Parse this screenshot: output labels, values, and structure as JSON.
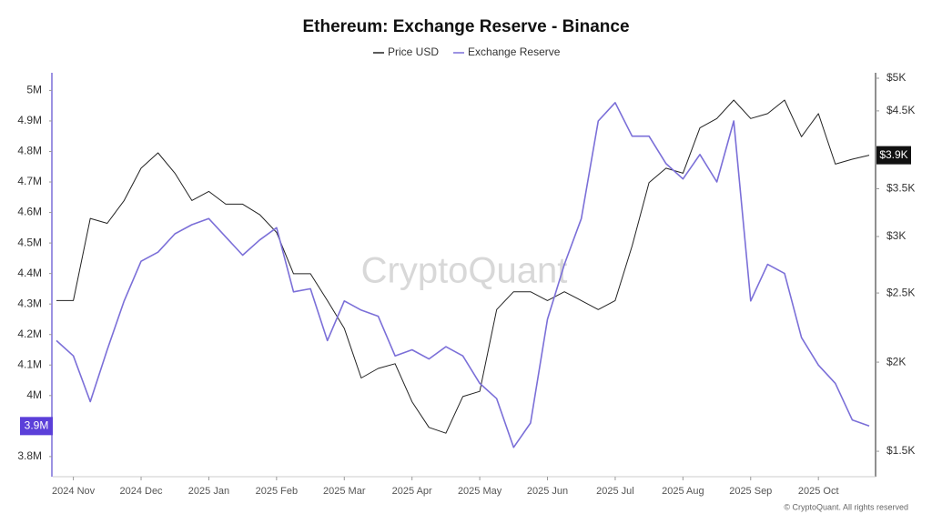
{
  "chart_data": {
    "type": "line",
    "title": "Ethereum: Exchange Reserve - Binance",
    "watermark": "CryptoQuant",
    "footer": "© CryptoQuant. All rights reserved",
    "x": [
      null,
      "2024 Nov",
      null,
      null,
      null,
      "2024 Dec",
      null,
      null,
      null,
      "2025 Jan",
      null,
      null,
      null,
      "2025 Feb",
      null,
      null,
      null,
      "2025 Mar",
      null,
      null,
      null,
      "2025 Apr",
      null,
      null,
      null,
      "2025 May",
      null,
      null,
      null,
      "2025 Jun",
      null,
      null,
      null,
      "2025 Jul",
      null,
      null,
      null,
      "2025 Aug",
      null,
      null,
      null,
      "2025 Sep",
      null,
      null,
      null,
      "2025 Oct",
      null,
      null,
      null
    ],
    "series": [
      {
        "name": "Price USD",
        "color": "#222222",
        "axis": "y2",
        "values": [
          2440,
          2440,
          3180,
          3130,
          3370,
          3740,
          3930,
          3680,
          3370,
          3470,
          3330,
          3330,
          3220,
          3040,
          2660,
          2660,
          2440,
          2230,
          1900,
          1960,
          1990,
          1760,
          1620,
          1590,
          1790,
          1820,
          2370,
          2510,
          2510,
          2440,
          2510,
          2440,
          2370,
          2440,
          2910,
          3570,
          3740,
          3680,
          4260,
          4390,
          4660,
          4390,
          4460,
          4660,
          4140,
          4460,
          3790,
          3850,
          3900
        ]
      },
      {
        "name": "Exchange Reserve",
        "color": "#7b6fd8",
        "values": [
          4180000,
          4130000,
          3980000,
          4150000,
          4310000,
          4440000,
          4470000,
          4530000,
          4560000,
          4580000,
          4520000,
          4460000,
          4510000,
          4550000,
          4340000,
          4350000,
          4180000,
          4310000,
          4280000,
          4260000,
          4130000,
          4150000,
          4120000,
          4160000,
          4130000,
          4040000,
          3990000,
          3830000,
          3910000,
          4250000,
          4430000,
          4580000,
          4900000,
          4960000,
          4850000,
          4850000,
          4760000,
          4710000,
          4790000,
          4700000,
          4900000,
          4310000,
          4430000,
          4400000,
          4190000,
          4100000,
          4040000,
          3920000,
          3900000
        ]
      }
    ],
    "ylim": [
      3740000,
      5040000
    ],
    "yticks": [
      {
        "value": 3800000,
        "label": "3.8M"
      },
      {
        "value": 4000000,
        "label": "4M"
      },
      {
        "value": 4100000,
        "label": "4.1M"
      },
      {
        "value": 4200000,
        "label": "4.2M"
      },
      {
        "value": 4300000,
        "label": "4.3M"
      },
      {
        "value": 4400000,
        "label": "4.4M"
      },
      {
        "value": 4500000,
        "label": "4.5M"
      },
      {
        "value": 4600000,
        "label": "4.6M"
      },
      {
        "value": 4700000,
        "label": "4.7M"
      },
      {
        "value": 4800000,
        "label": "4.8M"
      },
      {
        "value": 4900000,
        "label": "4.9M"
      },
      {
        "value": 5000000,
        "label": "5M"
      }
    ],
    "y_badge": {
      "value": 3900000,
      "label": "3.9M",
      "color": "#5b3fd9"
    },
    "y2lim": [
      1390,
      5000
    ],
    "y2_log": true,
    "y2ticks": [
      {
        "value": 1500,
        "label": "$1.5K"
      },
      {
        "value": 2000,
        "label": "$2K"
      },
      {
        "value": 2500,
        "label": "$2.5K"
      },
      {
        "value": 3000,
        "label": "$3K"
      },
      {
        "value": 3500,
        "label": "$3.5K"
      },
      {
        "value": 4500,
        "label": "$4.5K"
      },
      {
        "value": 5000,
        "label": "$5K"
      }
    ],
    "y2_badge": {
      "value": 3900,
      "label": "$3.9K",
      "color": "#111111"
    },
    "grid": false
  }
}
